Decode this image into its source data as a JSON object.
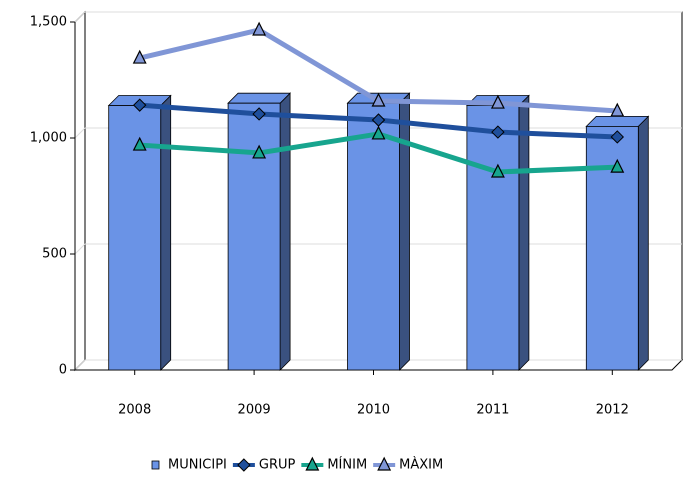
{
  "chart_data": {
    "type": "bar",
    "categories": [
      "2008",
      "2009",
      "2010",
      "2011",
      "2012"
    ],
    "series": [
      {
        "name": "MUNICIPI",
        "type": "bar",
        "color": "#6a93e6",
        "values": [
          1140,
          1150,
          1150,
          1140,
          1050
        ]
      },
      {
        "name": "GRUP",
        "type": "line",
        "marker": "diamond",
        "color": "#1f4f9c",
        "values": [
          1120,
          1082,
          1056,
          1004,
          983
        ]
      },
      {
        "name": "MÍNIM",
        "type": "line",
        "marker": "triangle",
        "color": "#17a58e",
        "values": [
          948,
          914,
          996,
          832,
          853
        ]
      },
      {
        "name": "MÀXIM",
        "type": "line",
        "marker": "triangle",
        "color": "#8096d6",
        "values": [
          1323,
          1444,
          1138,
          1129,
          1095
        ]
      }
    ],
    "ylim": [
      0,
      1500
    ],
    "yticks": [
      0,
      500,
      {
        "value": 1000,
        "label": "1,000"
      },
      {
        "value": 1500,
        "label": "1,500"
      }
    ],
    "grid": true
  }
}
